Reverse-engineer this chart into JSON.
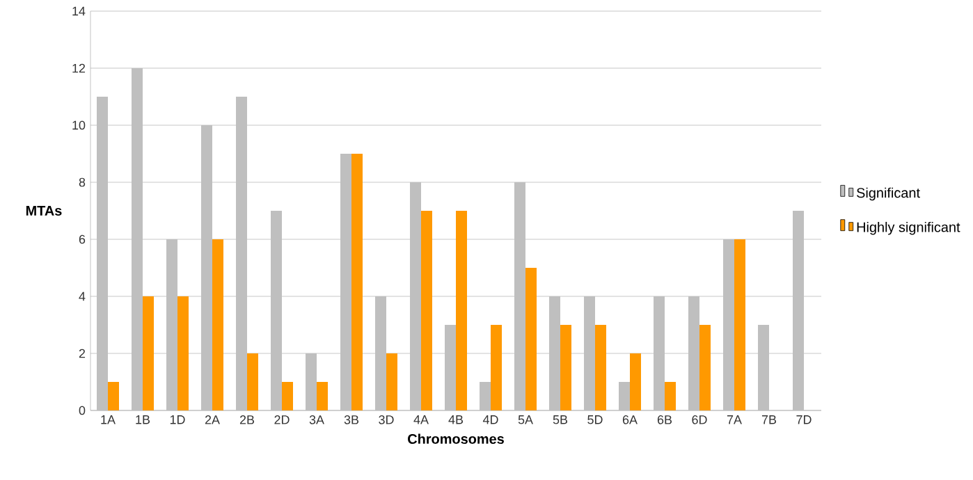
{
  "chart_data": {
    "type": "bar",
    "xlabel": "Chromosomes",
    "ylabel": "MTAs",
    "categories": [
      "1A",
      "1B",
      "1D",
      "2A",
      "2B",
      "2D",
      "3A",
      "3B",
      "3D",
      "4A",
      "4B",
      "4D",
      "5A",
      "5B",
      "5D",
      "6A",
      "6B",
      "6D",
      "7A",
      "7B",
      "7D"
    ],
    "series": [
      {
        "name": "Significant",
        "color": "#bfbfbf",
        "values": [
          11,
          12,
          6,
          10,
          11,
          7,
          2,
          9,
          4,
          8,
          3,
          1,
          8,
          4,
          4,
          1,
          4,
          4,
          6,
          3,
          7
        ]
      },
      {
        "name": "Highly significant",
        "color": "#ff9900",
        "values": [
          1,
          4,
          4,
          6,
          2,
          1,
          1,
          9,
          2,
          7,
          7,
          3,
          5,
          3,
          3,
          2,
          1,
          3,
          6,
          0,
          0
        ]
      }
    ],
    "ylim": [
      0,
      14
    ],
    "yticks": [
      0,
      2,
      4,
      6,
      8,
      10,
      12,
      14
    ],
    "grid": "y",
    "legend": "right"
  }
}
